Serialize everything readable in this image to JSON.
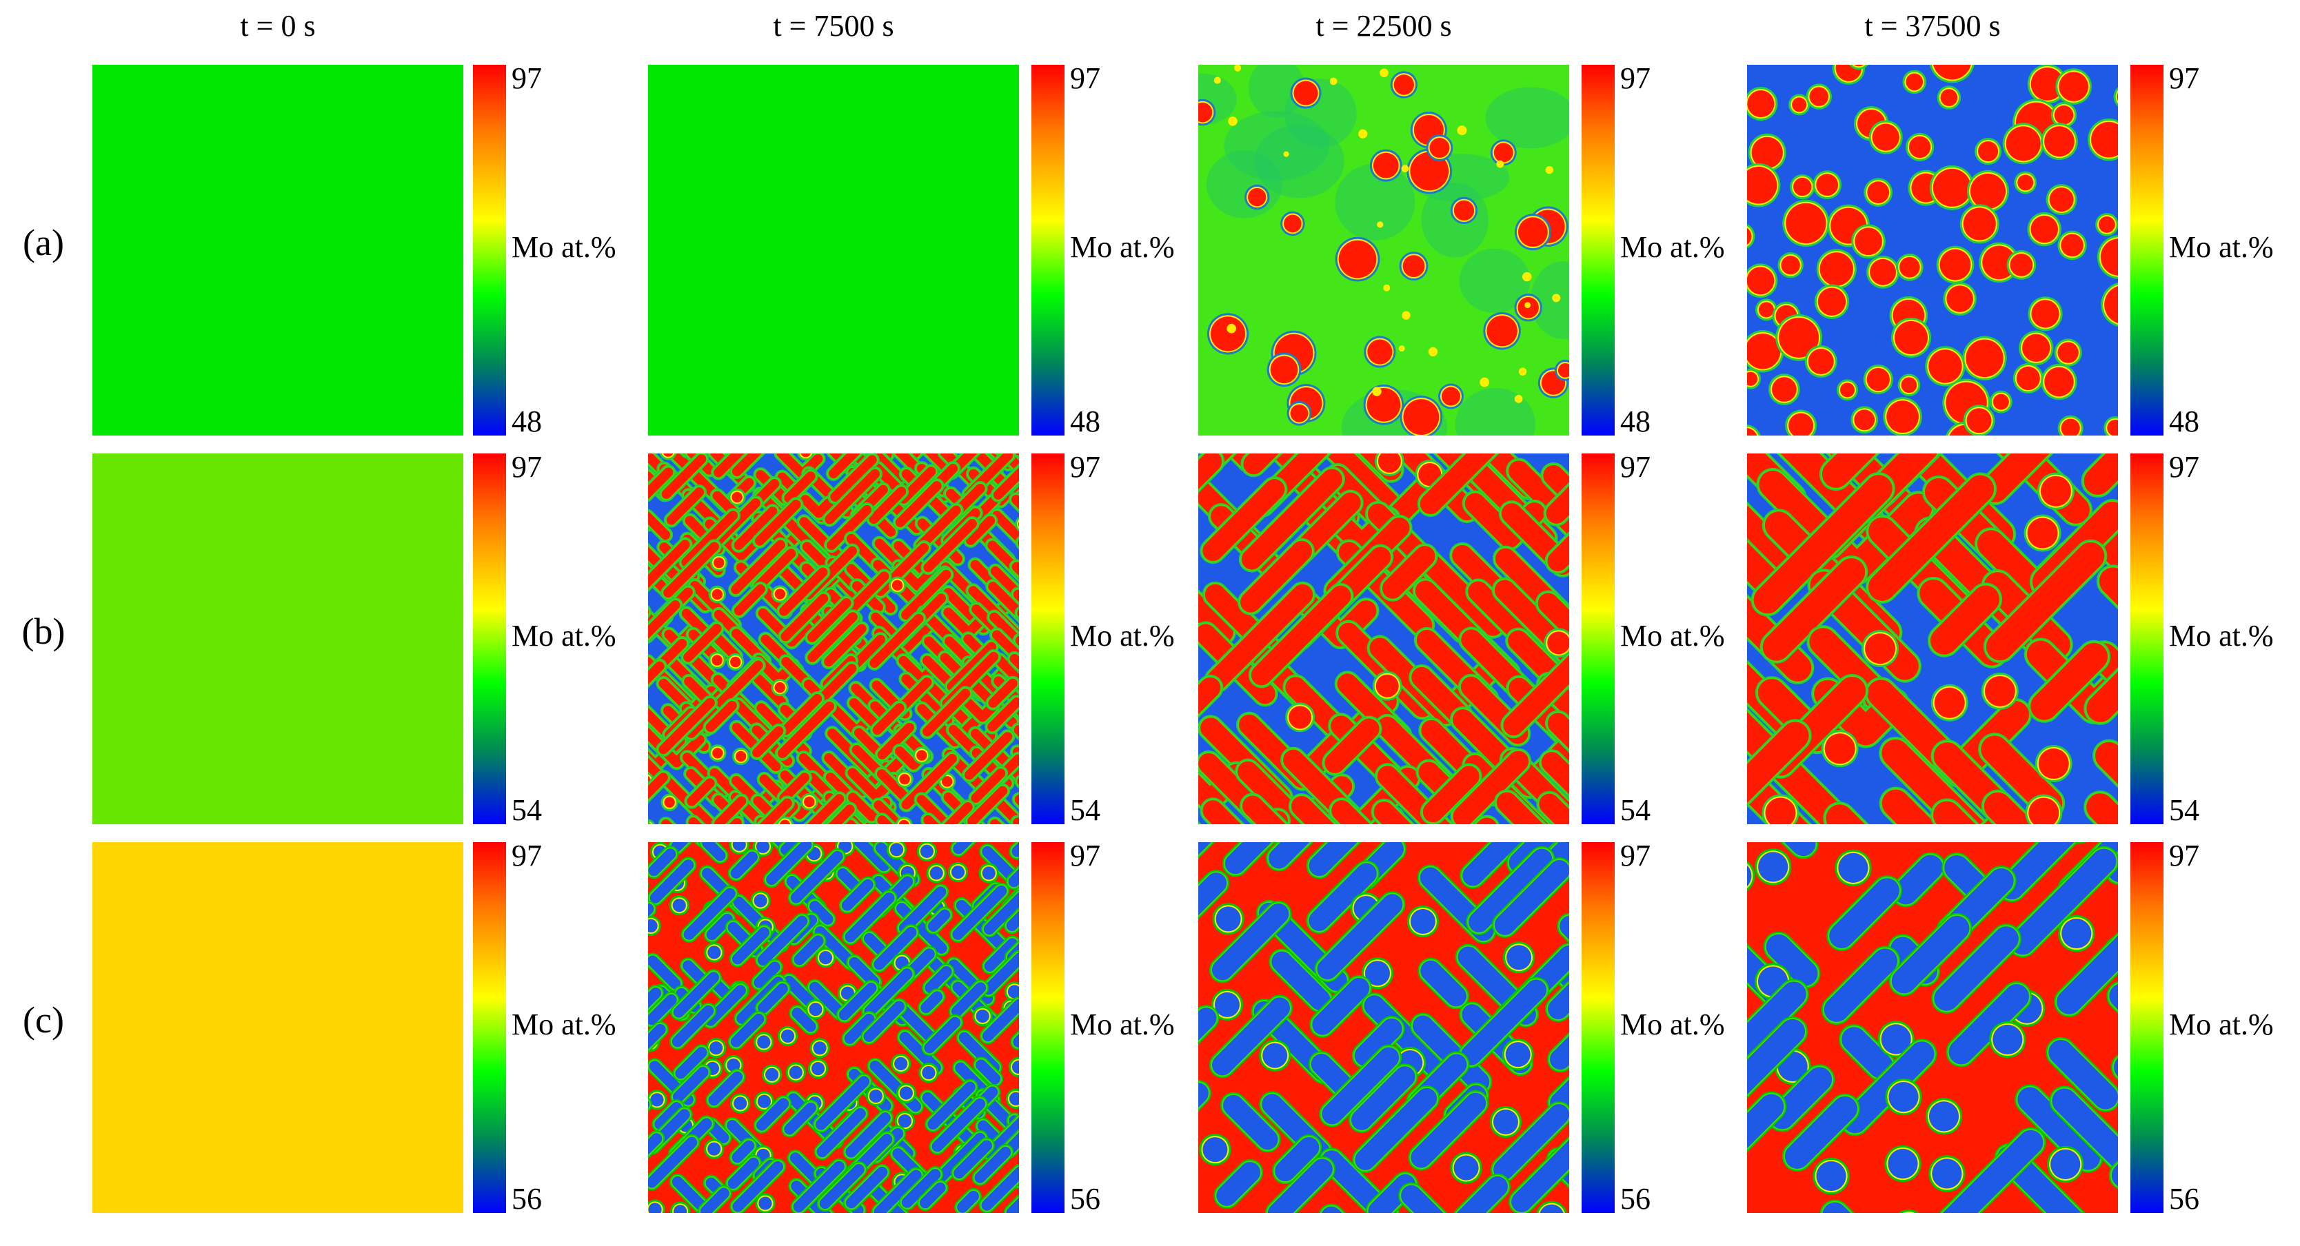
{
  "figure": {
    "column_titles": [
      "t = 0 s",
      "t = 7500 s",
      "t = 22500 s",
      "t = 37500 s"
    ],
    "rows": [
      {
        "label": "(a)",
        "colorbar": {
          "max": "97",
          "min": "48",
          "label": "Mo at.%"
        }
      },
      {
        "label": "(b)",
        "colorbar": {
          "max": "97",
          "min": "54",
          "label": "Mo at.%"
        }
      },
      {
        "label": "(c)",
        "colorbar": {
          "max": "97",
          "min": "56",
          "label": "Mo at.%"
        }
      }
    ],
    "panel_styles": [
      [
        "uniform-green",
        "uniform-green",
        "droplets-in-green",
        "droplets-in-blue"
      ],
      [
        "uniform-yellowgreen",
        "fine-labyrinth",
        "coarse-labyrinth",
        "coarser-labyrinth"
      ],
      [
        "uniform-yellow",
        "fine-blue-rods-in-red",
        "blue-rods-in-red",
        "coarse-blue-rods-in-red"
      ]
    ],
    "colors": {
      "high": "#ff0000",
      "mid": "#ffff00",
      "low_mid": "#00ff00",
      "low": "#0000ff",
      "phase_red": "#ff1a00",
      "phase_blue": "#1e5ae6",
      "uniform_green": "#00e600",
      "uniform_yellowgreen": "#66e600",
      "uniform_yellow": "#ffd400"
    }
  }
}
